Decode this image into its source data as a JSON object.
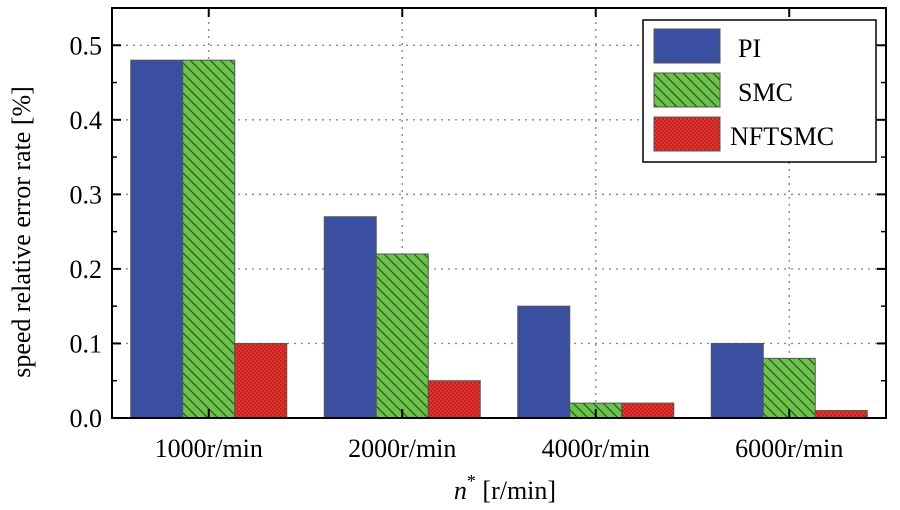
{
  "chart_data": {
    "type": "bar",
    "title": "",
    "xlabel_symbol": "n",
    "xlabel_superscript": "*",
    "xlabel_units": " [r/min]",
    "ylabel": "speed relative error rate [%]",
    "categories": [
      "1000r/min",
      "2000r/min",
      "4000r/min",
      "6000r/min"
    ],
    "series": [
      {
        "name": "PI",
        "values": [
          0.48,
          0.27,
          0.15,
          0.1
        ],
        "color": "#3a4fa0",
        "pattern": "solid"
      },
      {
        "name": "SMC",
        "values": [
          0.48,
          0.22,
          0.02,
          0.08
        ],
        "color": "#6cc24a",
        "pattern": "diagonal-hatch"
      },
      {
        "name": "NFTSMC",
        "values": [
          0.1,
          0.05,
          0.02,
          0.01
        ],
        "color": "#e8322d",
        "pattern": "dots"
      }
    ],
    "ylim": [
      0.0,
      0.55
    ],
    "yticks": [
      "0.0",
      "0.1",
      "0.2",
      "0.3",
      "0.4",
      "0.5"
    ],
    "ytick_values": [
      0.0,
      0.1,
      0.2,
      0.3,
      0.4,
      0.5
    ],
    "grid": true,
    "legend_position": "top-right"
  }
}
